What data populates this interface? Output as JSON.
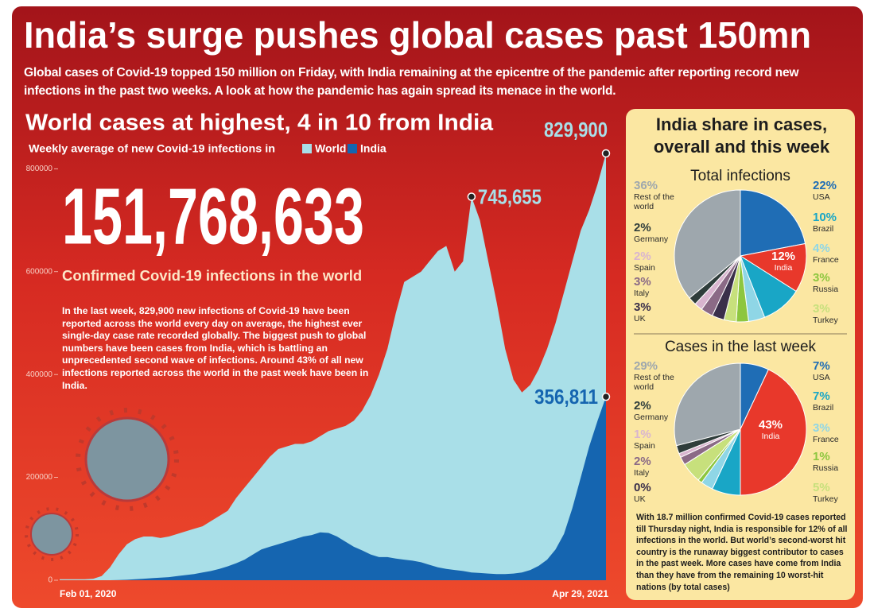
{
  "headline": "India’s surge pushes global cases past 150mn",
  "intro": "Global cases of Covid-19 topped 150 million on Friday, with India remaining at the epicentre of the pandemic after reporting record new infections in the past two weeks. A look at how the pandemic has again spread its menace in the world.",
  "sidebar": {
    "title": "India share in cases, overall and this week",
    "note": "With 18.7 million confirmed Covid-19 cases reported till Thursday night, India is responsible for 12% of all infections in the world. But world’s second-worst hit country is the runaway biggest contributor to cases in the past week. More cases have come from India than they have from the remaining 10 worst-hit nations (by total cases)"
  },
  "chart_data": [
    {
      "type": "area",
      "title": "World cases at highest, 4 in 10 from India",
      "subtitle": "Weekly average of new Covid-19 infections in",
      "big_number": "151,768,633",
      "big_number_caption": "Confirmed Covid-19 infections in the world",
      "description": "In the last week, 829,900 new infections of Covid-19 have been reported across the world every day on average, the highest ever single-day case rate recorded globally. The biggest push to global numbers have been cases from India, which is battling an unprecedented second wave of infections. Around 43% of all new infections reported across the world in the past week have been in India.",
      "x": [
        "Feb 01, 2020",
        null,
        null,
        null,
        null,
        null,
        null,
        null,
        null,
        null,
        null,
        null,
        null,
        null,
        null,
        null,
        null,
        null,
        null,
        null,
        null,
        null,
        null,
        null,
        null,
        null,
        null,
        null,
        null,
        null,
        null,
        null,
        null,
        null,
        null,
        null,
        null,
        null,
        null,
        null,
        null,
        null,
        null,
        null,
        null,
        null,
        null,
        null,
        null,
        null,
        null,
        null,
        null,
        null,
        null,
        null,
        null,
        null,
        null,
        null,
        null,
        null,
        null,
        null,
        null,
        "Apr 29, 2021"
      ],
      "series": [
        {
          "name": "World",
          "color": "#a9dfe8",
          "values": [
            2000,
            2000,
            2000,
            2000,
            3000,
            8000,
            25000,
            50000,
            70000,
            80000,
            85000,
            85000,
            82000,
            85000,
            90000,
            95000,
            100000,
            105000,
            115000,
            125000,
            135000,
            160000,
            180000,
            200000,
            220000,
            240000,
            255000,
            260000,
            265000,
            265000,
            270000,
            280000,
            290000,
            295000,
            300000,
            310000,
            330000,
            360000,
            400000,
            450000,
            520000,
            580000,
            590000,
            600000,
            620000,
            640000,
            650000,
            600000,
            620000,
            745655,
            700000,
            620000,
            540000,
            450000,
            390000,
            365000,
            380000,
            410000,
            450000,
            500000,
            560000,
            620000,
            680000,
            720000,
            770000,
            829900
          ],
          "value_labels": [
            null,
            null,
            null,
            null,
            null,
            null,
            null,
            null,
            null,
            null,
            null,
            null,
            null,
            null,
            null,
            null,
            null,
            null,
            null,
            null,
            null,
            null,
            null,
            null,
            null,
            null,
            null,
            null,
            null,
            null,
            null,
            null,
            null,
            null,
            null,
            null,
            null,
            null,
            null,
            null,
            null,
            null,
            null,
            null,
            null,
            null,
            null,
            null,
            null,
            "745,655",
            null,
            null,
            null,
            null,
            null,
            null,
            null,
            null,
            null,
            null,
            null,
            null,
            null,
            null,
            null,
            "829,900"
          ]
        },
        {
          "name": "India",
          "color": "#1565b0",
          "values": [
            0,
            0,
            0,
            0,
            0,
            0,
            0,
            500,
            1000,
            2000,
            3000,
            4000,
            5000,
            6000,
            8000,
            10000,
            12000,
            15000,
            18000,
            22000,
            27000,
            33000,
            40000,
            50000,
            60000,
            65000,
            70000,
            75000,
            80000,
            85000,
            88000,
            93000,
            92000,
            85000,
            75000,
            65000,
            58000,
            50000,
            45000,
            45000,
            42000,
            40000,
            38000,
            35000,
            30000,
            25000,
            22000,
            20000,
            18000,
            15000,
            14000,
            13000,
            12000,
            12000,
            13000,
            15000,
            20000,
            28000,
            40000,
            60000,
            90000,
            140000,
            200000,
            260000,
            310000,
            356811
          ],
          "value_labels": [
            null,
            null,
            null,
            null,
            null,
            null,
            null,
            null,
            null,
            null,
            null,
            null,
            null,
            null,
            null,
            null,
            null,
            null,
            null,
            null,
            null,
            null,
            null,
            null,
            null,
            null,
            null,
            null,
            null,
            null,
            null,
            null,
            null,
            null,
            null,
            null,
            null,
            null,
            null,
            null,
            null,
            null,
            null,
            null,
            null,
            null,
            null,
            null,
            null,
            null,
            null,
            null,
            null,
            null,
            null,
            null,
            null,
            null,
            null,
            null,
            null,
            null,
            null,
            null,
            null,
            "356,811"
          ]
        }
      ],
      "ylim": [
        0,
        850000
      ],
      "yticks": [
        0,
        200000,
        400000,
        600000,
        800000
      ]
    },
    {
      "type": "pie",
      "title": "Total infections",
      "categories": [
        "USA",
        "India",
        "Brazil",
        "France",
        "Russia",
        "Turkey",
        "UK",
        "Italy",
        "Spain",
        "Germany",
        "Rest of the world"
      ],
      "values": [
        22,
        12,
        10,
        4,
        3,
        3,
        3,
        3,
        2,
        2,
        36
      ],
      "value_labels": [
        "22%",
        "12%",
        "10%",
        "4%",
        "3%",
        "3%",
        "3%",
        "3%",
        "2%",
        "2%",
        "36%"
      ],
      "colors": [
        "#1f6db5",
        "#e8382b",
        "#19a6c6",
        "#8fd6e6",
        "#8dc63f",
        "#c7e07c",
        "#3a2f4a",
        "#8b6a86",
        "#d9b5cf",
        "#2f3d3b",
        "#9ea7ad"
      ]
    },
    {
      "type": "pie",
      "title": "Cases in the last week",
      "categories": [
        "USA",
        "India",
        "Brazil",
        "France",
        "Russia",
        "Turkey",
        "UK",
        "Italy",
        "Spain",
        "Germany",
        "Rest of the world"
      ],
      "values": [
        7,
        43,
        7,
        3,
        1,
        5,
        0,
        2,
        1,
        2,
        29
      ],
      "value_labels": [
        "7%",
        "43%",
        "7%",
        "3%",
        "1%",
        "5%",
        "0%",
        "2%",
        "1%",
        "2%",
        "29%"
      ],
      "colors": [
        "#1f6db5",
        "#e8382b",
        "#19a6c6",
        "#8fd6e6",
        "#8dc63f",
        "#c7e07c",
        "#3a2f4a",
        "#8b6a86",
        "#d9b5cf",
        "#2f3d3b",
        "#9ea7ad"
      ]
    }
  ]
}
